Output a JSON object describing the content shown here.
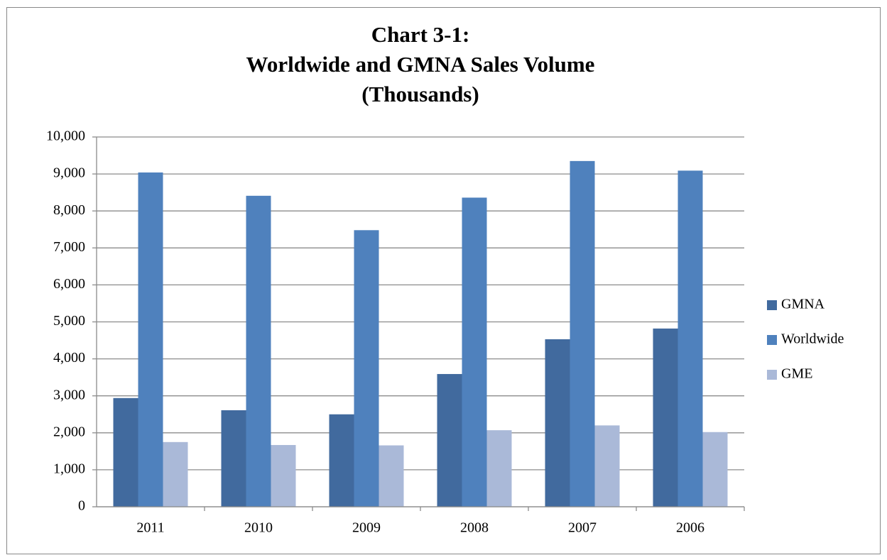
{
  "chart_data": {
    "type": "bar",
    "title": [
      "Chart 3-1:",
      "Worldwide and GMNA Sales Volume",
      "(Thousands)"
    ],
    "categories": [
      "2011",
      "2010",
      "2009",
      "2008",
      "2007",
      "2006"
    ],
    "series": [
      {
        "name": "GMNA",
        "color": "#416a9e",
        "values": [
          2940,
          2610,
          2500,
          3590,
          4530,
          4820
        ]
      },
      {
        "name": "Worldwide",
        "color": "#4f81bd",
        "values": [
          9040,
          8410,
          7480,
          8360,
          9350,
          9090
        ]
      },
      {
        "name": "GME",
        "color": "#aab9d8",
        "values": [
          1750,
          1670,
          1660,
          2070,
          2200,
          2020
        ]
      }
    ],
    "ylim": [
      0,
      10000
    ],
    "yticks": [
      0,
      {
        "value": 1000,
        "label": "1,000"
      },
      {
        "value": 2000,
        "label": "2,000"
      },
      {
        "value": 3000,
        "label": "3,000"
      },
      {
        "value": 4000,
        "label": "4,000"
      },
      {
        "value": 5000,
        "label": "5,000"
      },
      {
        "value": 6000,
        "label": "6,000"
      },
      {
        "value": 7000,
        "label": "7,000"
      },
      {
        "value": 8000,
        "label": "8,000"
      },
      {
        "value": 9000,
        "label": "9,000"
      },
      {
        "value": 10000,
        "label": "10,000"
      }
    ],
    "grid": true,
    "legend": "right"
  }
}
